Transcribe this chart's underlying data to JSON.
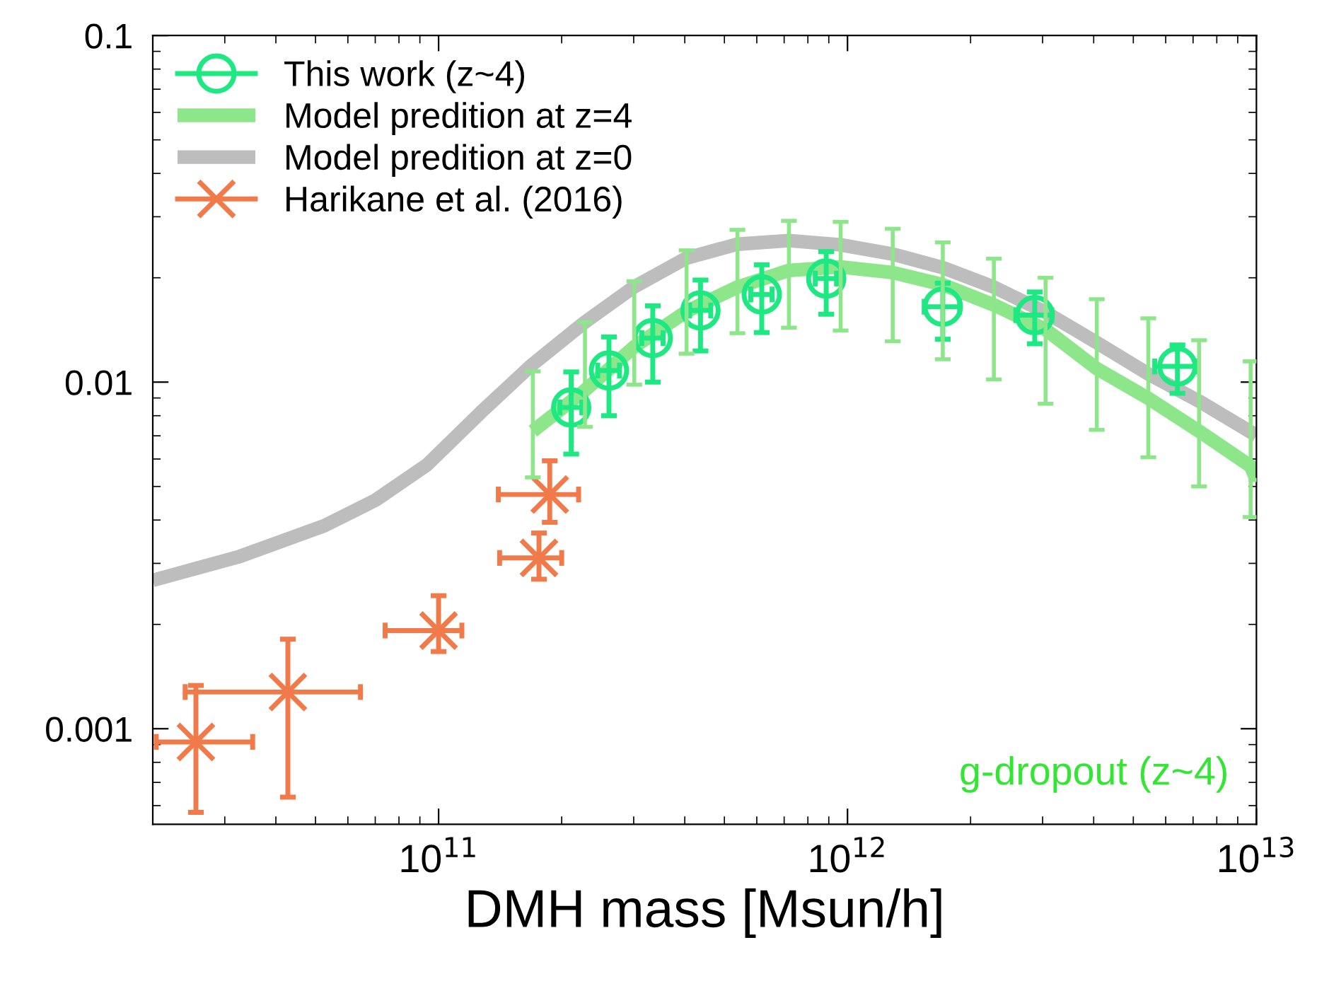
{
  "chart_data": {
    "type": "scatter",
    "xlabel": "DMH mass [Msun/h]",
    "log": "xy",
    "xlim": [
      20000000000.0,
      10000000000000.0
    ],
    "ylim": [
      0.00053,
      0.1
    ],
    "xticks": [
      {
        "value": 100000000000.0,
        "label": "10$^{11}$"
      },
      {
        "value": 1000000000000.0,
        "label": "10$^{12}$"
      },
      {
        "value": 10000000000000.0,
        "label": "10$^{13}$"
      }
    ],
    "yticks": [
      {
        "value": 0.001,
        "label": "0.001"
      },
      {
        "value": 0.01,
        "label": "0.01"
      },
      {
        "value": 0.1,
        "label": "0.1"
      }
    ],
    "grid": false,
    "legend": "top left",
    "annotations": [
      "g-dropout (z~4)"
    ],
    "series": [
      {
        "name": "This work (z~4)",
        "marker": "circle",
        "color": "#1ee882",
        "x": [
          211000000000.0,
          261000000000.0,
          334000000000.0,
          437000000000.0,
          617000000000.0,
          887000000000.0,
          1710000000000.0,
          2870000000000.0,
          6410000000000.0
        ],
        "values": [
          0.00845,
          0.0108,
          0.0134,
          0.0161,
          0.0179,
          0.0199,
          0.0165,
          0.0156,
          0.0111
        ],
        "errors": [
          [
            0.0062,
            0.0107
          ],
          [
            0.008,
            0.0135
          ],
          [
            0.01,
            0.0166
          ],
          [
            0.0123,
            0.0197
          ],
          [
            0.0139,
            0.0218
          ],
          [
            0.0157,
            0.0238
          ],
          [
            0.0133,
            0.0193
          ],
          [
            0.0129,
            0.0182
          ],
          [
            0.00928,
            0.0128
          ]
        ],
        "xerrors": [
          13000000000.0,
          16000000000.0,
          20000000000.0,
          26000000000.0,
          37000000000.0,
          53000000000.0,
          170000000000.0,
          290000000000.0,
          770000000000.0
        ]
      },
      {
        "name": "Model predition at z=4",
        "type": "line",
        "marker": "none",
        "color": "#8ee68a",
        "x": [
          170000000000.0,
          228000000000.0,
          301000000000.0,
          404000000000.0,
          538000000000.0,
          719000000000.0,
          962000000000.0,
          1290000000000.0,
          1710000000000.0,
          2280000000000.0,
          3050000000000.0,
          4070000000000.0,
          5440000000000.0,
          7240000000000.0,
          9680000000000.0,
          10000000000000.0
        ],
        "values": [
          0.00722,
          0.00947,
          0.01265,
          0.016,
          0.0188,
          0.021,
          0.0215,
          0.0207,
          0.0191,
          0.0167,
          0.01419,
          0.01094,
          0.00898,
          0.00722,
          0.00572,
          0.00522
        ],
        "errors": [
          [
            0.00531,
            0.01074
          ],
          [
            0.00743,
            0.01489
          ],
          [
            0.00983,
            0.01954
          ],
          [
            0.01208,
            0.024
          ],
          [
            0.01384,
            0.0275
          ],
          [
            0.01436,
            0.0292
          ],
          [
            0.01409,
            0.029
          ],
          [
            0.01312,
            0.0277
          ],
          [
            0.01164,
            0.0253
          ],
          [
            0.01018,
            0.0227
          ],
          [
            0.00866,
            0.02
          ],
          [
            0.00728,
            0.01734
          ],
          [
            0.00607,
            0.01528
          ],
          [
            0.005,
            0.01321
          ],
          [
            0.00408,
            0.01148
          ],
          null
        ]
      },
      {
        "name": "Model predition at z=0",
        "type": "line",
        "marker": "none",
        "color": "#bdbdbd",
        "x": [
          20000000000.0,
          32600000000.0,
          52500000000.0,
          70200000000.0,
          93800000000.0,
          127000000000.0,
          168000000000.0,
          228000000000.0,
          301000000000.0,
          404000000000.0,
          538000000000.0,
          719000000000.0,
          962000000000.0,
          1290000000000.0,
          1710000000000.0,
          2280000000000.0,
          3050000000000.0,
          4070000000000.0,
          5440000000000.0,
          7240000000000.0,
          10000000000000.0
        ],
        "values": [
          0.00268,
          0.00314,
          0.00385,
          0.00457,
          0.00578,
          0.00819,
          0.01114,
          0.0149,
          0.01884,
          0.0228,
          0.025,
          0.0256,
          0.0249,
          0.0234,
          0.0214,
          0.0188,
          0.0159,
          0.013,
          0.01056,
          0.00881,
          0.00702
        ]
      },
      {
        "name": "Harikane et al. (2016)",
        "marker": "cross",
        "color": "#f07a4a",
        "x": [
          25500000000.0,
          42800000000.0,
          100000000000.0,
          176000000000.0,
          187000000000.0
        ],
        "values": [
          0.000916,
          0.001276,
          0.00192,
          0.00311,
          0.00474
        ],
        "errors": [
          [
            0.000574,
            0.001333
          ],
          [
            0.000635,
            0.001813
          ],
          [
            0.00167,
            0.00242
          ],
          [
            0.0027,
            0.00367
          ],
          [
            0.00394,
            0.00593
          ]
        ],
        "xerrors": [
          [
            20400000000.0,
            35100000000.0
          ],
          [
            24000000000.0,
            64400000000.0
          ],
          [
            74000000000.0,
            114000000000.0
          ],
          [
            141000000000.0,
            200000000000.0
          ],
          [
            140000000000.0,
            220000000000.0
          ]
        ]
      }
    ]
  }
}
